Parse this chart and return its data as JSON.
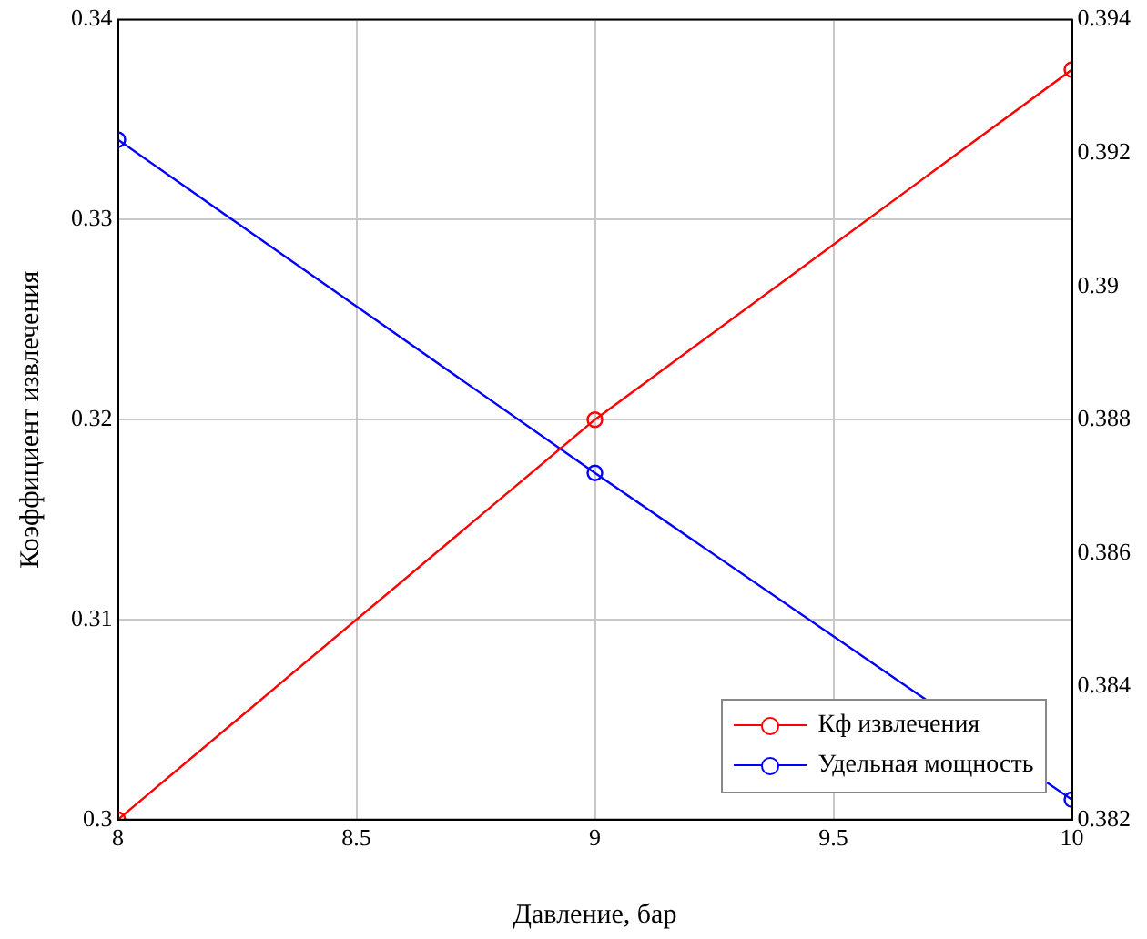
{
  "chart_data": {
    "type": "line",
    "xlabel": "Давление, бар",
    "ylabel": "Коэффициент извлечения",
    "x": [
      8,
      9,
      10
    ],
    "series": [
      {
        "name": "Кф извлечения",
        "color": "#ff0000",
        "values": [
          0.3,
          0.32,
          0.3375
        ]
      },
      {
        "name": "Удельная мощность",
        "color": "#0000ff",
        "values": [
          0.3922,
          0.3872,
          0.3823
        ],
        "axis": "y2"
      }
    ],
    "xlim": [
      8,
      10
    ],
    "xticks": [
      8,
      8.5,
      9,
      9.5,
      10
    ],
    "ylim": [
      0.3,
      0.34
    ],
    "yticks": [
      0.3,
      0.31,
      0.32,
      0.33,
      0.34
    ],
    "y2lim": [
      0.382,
      0.394
    ],
    "y2ticks": [
      0.382,
      0.384,
      0.386,
      0.388,
      0.39,
      0.392,
      0.394
    ],
    "grid": true,
    "legend": "bottom right",
    "marker": "circle",
    "line_style": "solid"
  }
}
